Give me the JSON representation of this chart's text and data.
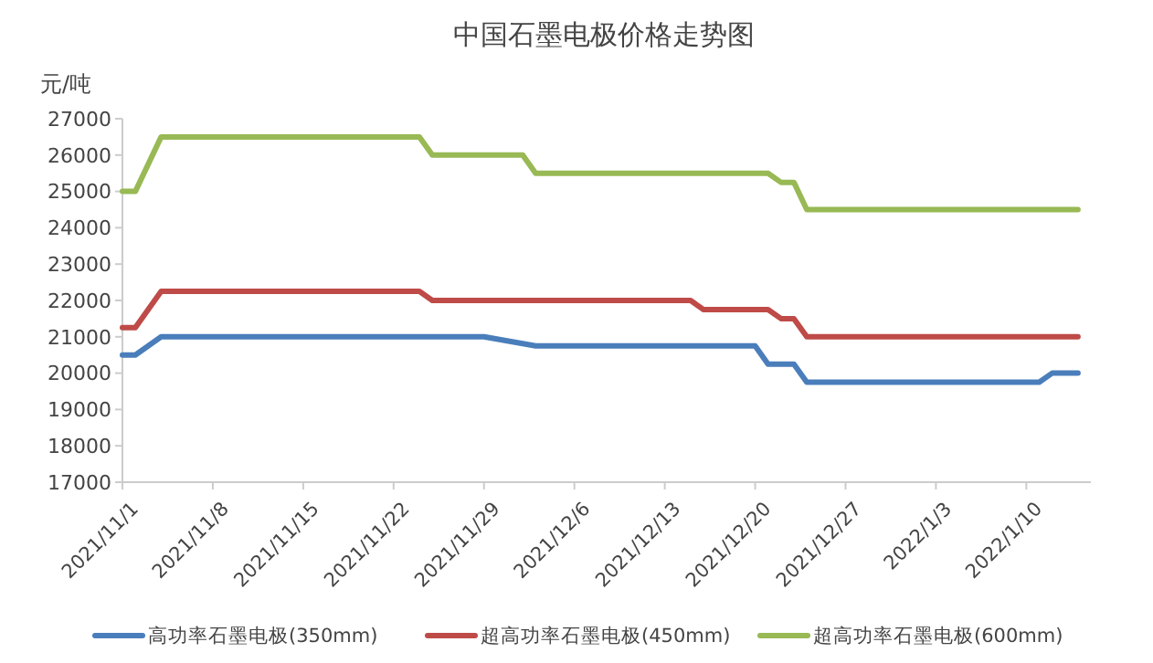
{
  "chart_data": {
    "type": "line",
    "title": "中国石墨电极价格走势图",
    "ylabel": "元/吨",
    "xlim": [
      "2021-11-01",
      "2022-01-15"
    ],
    "xticks": [
      {
        "value": "2021-11-01",
        "label": "2021/11/1"
      },
      {
        "value": "2021-11-08",
        "label": "2021/11/8"
      },
      {
        "value": "2021-11-15",
        "label": "2021/11/15"
      },
      {
        "value": "2021-11-22",
        "label": "2021/11/22"
      },
      {
        "value": "2021-11-29",
        "label": "2021/11/29"
      },
      {
        "value": "2021-12-06",
        "label": "2021/12/6"
      },
      {
        "value": "2021-12-13",
        "label": "2021/12/13"
      },
      {
        "value": "2021-12-20",
        "label": "2021/12/20"
      },
      {
        "value": "2021-12-27",
        "label": "2021/12/27"
      },
      {
        "value": "2022-01-03",
        "label": "2022/1/3"
      },
      {
        "value": "2022-01-10",
        "label": "2022/1/10"
      }
    ],
    "ylim": [
      17000,
      27000
    ],
    "yticks": [
      17000,
      18000,
      19000,
      20000,
      21000,
      22000,
      23000,
      24000,
      25000,
      26000,
      27000
    ],
    "grid": false,
    "legend": "bottom",
    "marker": "none",
    "line_style": "solid",
    "series": [
      {
        "name": "高功率石墨电极(350mm)",
        "color": "#4a7ebb",
        "x": [
          "2021-11-01",
          "2021-11-02",
          "2021-11-04",
          "2021-11-29",
          "2021-12-03",
          "2021-12-20",
          "2021-12-21",
          "2021-12-23",
          "2021-12-24",
          "2022-01-11",
          "2022-01-12",
          "2022-01-14"
        ],
        "values": [
          20500,
          20500,
          21000,
          21000,
          20750,
          20750,
          20250,
          20250,
          19750,
          19750,
          20000,
          20000
        ]
      },
      {
        "name": "超高功率石墨电极(450mm)",
        "color": "#be4b48",
        "x": [
          "2021-11-01",
          "2021-11-02",
          "2021-11-04",
          "2021-11-24",
          "2021-11-25",
          "2021-12-15",
          "2021-12-16",
          "2021-12-21",
          "2021-12-22",
          "2021-12-23",
          "2021-12-24",
          "2022-01-14"
        ],
        "values": [
          21250,
          21250,
          22250,
          22250,
          22000,
          22000,
          21750,
          21750,
          21500,
          21500,
          21000,
          21000
        ]
      },
      {
        "name": "超高功率石墨电极(600mm)",
        "color": "#98b954",
        "x": [
          "2021-11-01",
          "2021-11-02",
          "2021-11-04",
          "2021-11-24",
          "2021-11-25",
          "2021-12-02",
          "2021-12-03",
          "2021-12-21",
          "2021-12-22",
          "2021-12-23",
          "2021-12-24",
          "2022-01-14"
        ],
        "values": [
          25000,
          25000,
          26500,
          26500,
          26000,
          26000,
          25500,
          25500,
          25250,
          25250,
          24500,
          24500
        ]
      }
    ]
  }
}
